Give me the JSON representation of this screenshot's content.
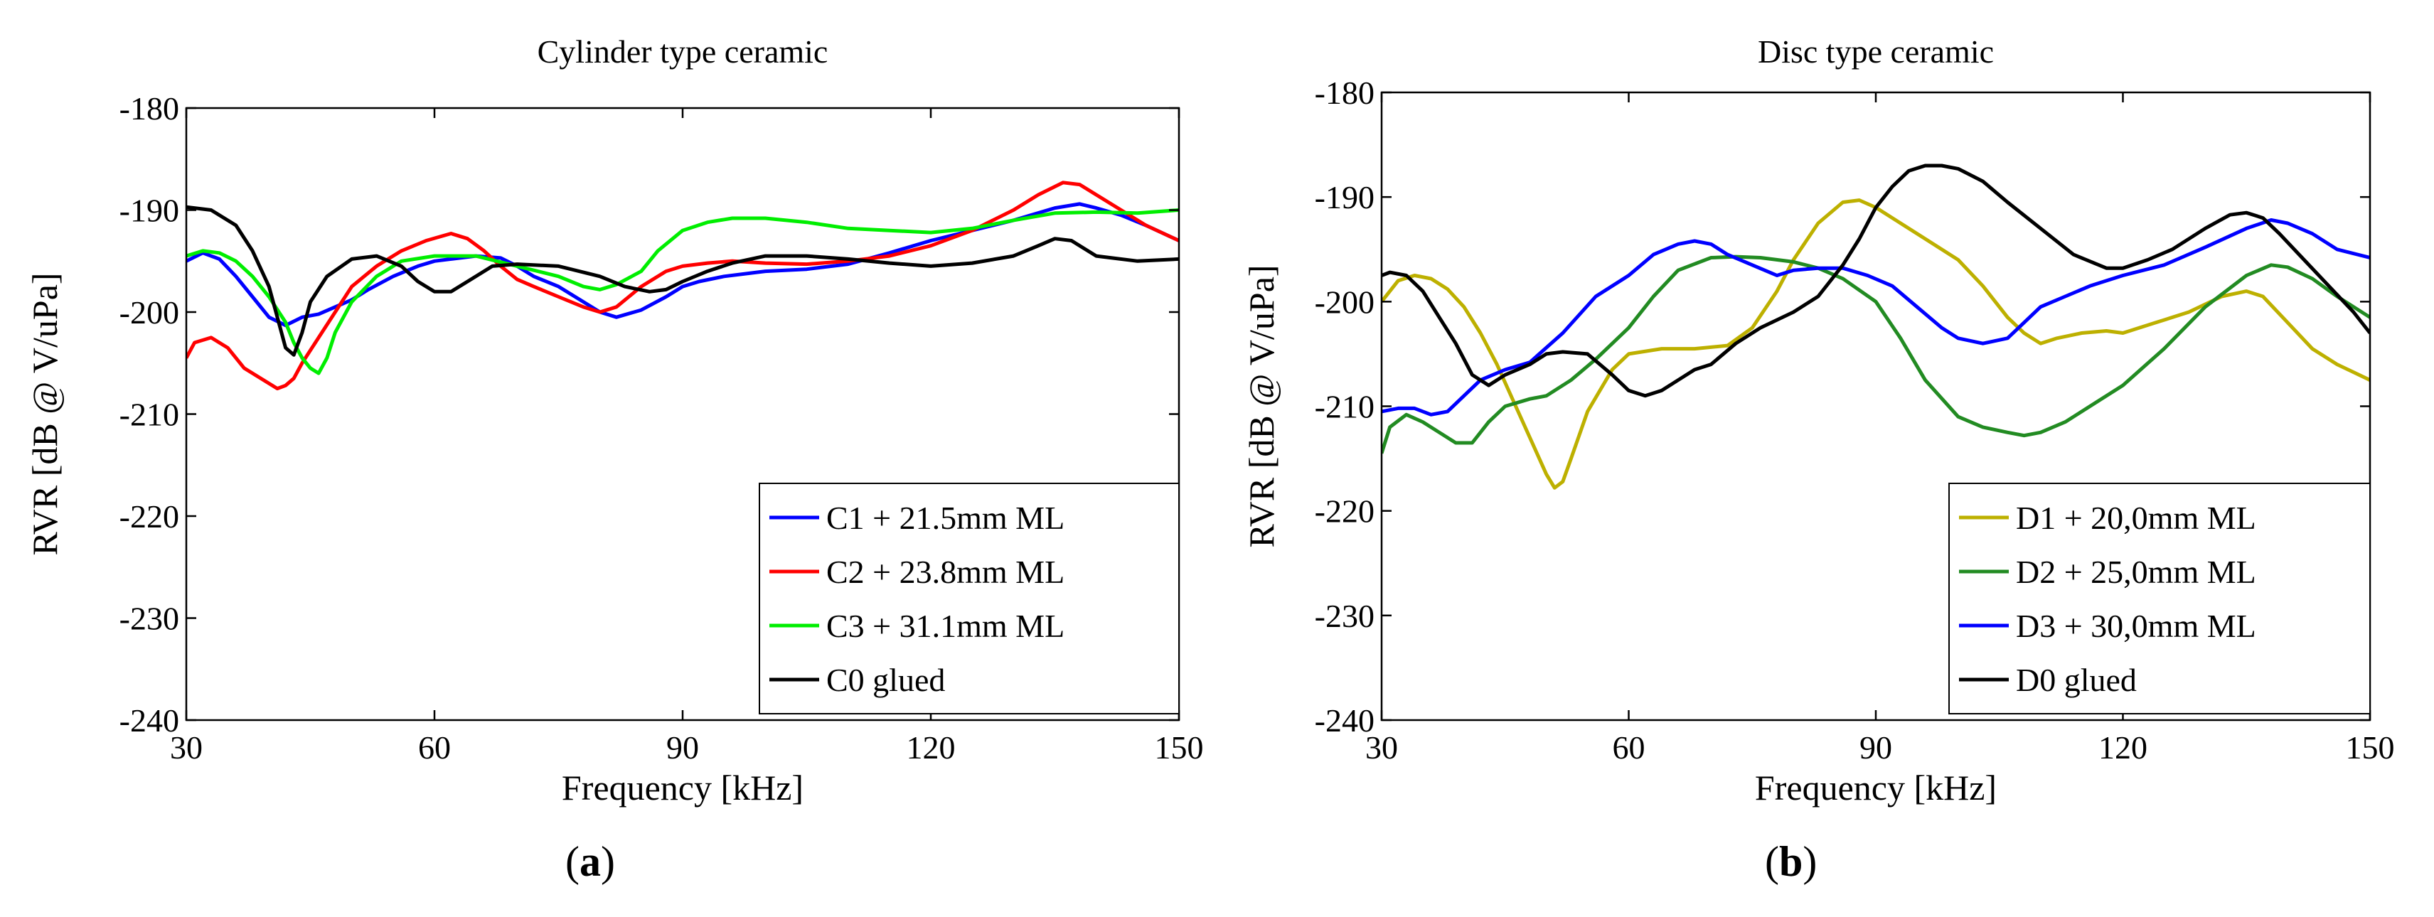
{
  "chart_data": [
    {
      "type": "line",
      "title": "Cylinder type ceramic",
      "xlabel": "Frequency [kHz]",
      "ylabel": "RVR [dB @ V/uPa]",
      "xlim": [
        30,
        150
      ],
      "ylim": [
        -240,
        -180
      ],
      "xticks": [
        30,
        60,
        90,
        120,
        150
      ],
      "yticks": [
        -240,
        -230,
        -220,
        -210,
        -200,
        -190,
        -180
      ],
      "grid": false,
      "legend_position": "bottom-right",
      "subfigure_label": {
        "open": "(",
        "letter": "a",
        "close": ")"
      },
      "series": [
        {
          "name": "C1 + 21.5mm ML",
          "color": "#0000ff",
          "x": [
            30,
            32,
            34,
            36,
            38,
            40,
            42,
            44,
            46,
            48,
            50,
            52,
            55,
            58,
            60,
            62,
            65,
            68,
            70,
            72,
            75,
            78,
            80,
            82,
            85,
            88,
            90,
            92,
            95,
            100,
            105,
            110,
            115,
            120,
            125,
            130,
            135,
            138,
            140,
            143,
            146,
            150
          ],
          "y": [
            -195,
            -194.2,
            -194.8,
            -196.5,
            -198.5,
            -200.5,
            -201.3,
            -200.5,
            -200.2,
            -199.5,
            -198.8,
            -197.8,
            -196.5,
            -195.5,
            -195,
            -194.8,
            -194.5,
            -194.7,
            -195.5,
            -196.5,
            -197.5,
            -199,
            -200,
            -200.5,
            -199.8,
            -198.5,
            -197.5,
            -197,
            -196.5,
            -196,
            -195.8,
            -195.3,
            -194.2,
            -193,
            -192,
            -191,
            -189.8,
            -189.4,
            -189.8,
            -190.5,
            -191.5,
            -193
          ]
        },
        {
          "name": "C2 + 23.8mm ML",
          "color": "#ff0000",
          "x": [
            30,
            31,
            33,
            35,
            37,
            39,
            41,
            42,
            43,
            44,
            46,
            48,
            50,
            53,
            56,
            59,
            62,
            64,
            66,
            68,
            70,
            72,
            75,
            78,
            80,
            82,
            85,
            88,
            90,
            93,
            96,
            100,
            105,
            110,
            115,
            120,
            125,
            130,
            133,
            136,
            138,
            140,
            143,
            146,
            150
          ],
          "y": [
            -204.5,
            -203,
            -202.5,
            -203.5,
            -205.5,
            -206.5,
            -207.5,
            -207.2,
            -206.5,
            -205,
            -202.5,
            -200,
            -197.5,
            -195.5,
            -194,
            -193,
            -192.3,
            -192.8,
            -194,
            -195.5,
            -196.8,
            -197.5,
            -198.5,
            -199.5,
            -200,
            -199.5,
            -197.5,
            -196,
            -195.5,
            -195.2,
            -195,
            -195.2,
            -195.3,
            -195,
            -194.5,
            -193.5,
            -192,
            -190,
            -188.5,
            -187.3,
            -187.5,
            -188.5,
            -190,
            -191.5,
            -193
          ]
        },
        {
          "name": "C3 + 31.1mm ML",
          "color": "#00ee00",
          "x": [
            30,
            32,
            34,
            36,
            38,
            40,
            42,
            43,
            44,
            45,
            46,
            47,
            48,
            50,
            53,
            56,
            60,
            65,
            70,
            75,
            78,
            80,
            82,
            85,
            87,
            90,
            93,
            96,
            100,
            105,
            110,
            115,
            120,
            125,
            130,
            135,
            140,
            145,
            150
          ],
          "y": [
            -194.5,
            -194,
            -194.2,
            -195,
            -196.5,
            -198.5,
            -201,
            -203,
            -204.5,
            -205.5,
            -206,
            -204.5,
            -202,
            -199,
            -196.5,
            -195,
            -194.5,
            -194.5,
            -195.5,
            -196.5,
            -197.5,
            -197.8,
            -197.3,
            -196,
            -194,
            -192,
            -191.2,
            -190.8,
            -190.8,
            -191.2,
            -191.8,
            -192,
            -192.2,
            -191.8,
            -191,
            -190.3,
            -190.2,
            -190.3,
            -190
          ]
        },
        {
          "name": "C0 glued",
          "color": "#000000",
          "x": [
            30,
            33,
            36,
            38,
            40,
            41,
            42,
            43,
            44,
            45,
            47,
            50,
            53,
            56,
            58,
            60,
            62,
            64,
            67,
            70,
            75,
            80,
            83,
            86,
            88,
            90,
            93,
            96,
            100,
            105,
            110,
            115,
            120,
            125,
            130,
            133,
            135,
            137,
            140,
            145,
            150
          ],
          "y": [
            -189.7,
            -190,
            -191.5,
            -194,
            -197.5,
            -200.5,
            -203.5,
            -204.2,
            -202,
            -199,
            -196.5,
            -194.8,
            -194.5,
            -195.5,
            -197,
            -198,
            -198,
            -197,
            -195.5,
            -195.3,
            -195.5,
            -196.5,
            -197.5,
            -198,
            -197.8,
            -197,
            -196,
            -195.2,
            -194.5,
            -194.5,
            -194.8,
            -195.2,
            -195.5,
            -195.2,
            -194.5,
            -193.5,
            -192.8,
            -193,
            -194.5,
            -195,
            -194.8
          ]
        }
      ]
    },
    {
      "type": "line",
      "title": "Disc type ceramic",
      "xlabel": "Frequency [kHz]",
      "ylabel": "RVR [dB @ V/uPa]",
      "xlim": [
        30,
        150
      ],
      "ylim": [
        -240,
        -180
      ],
      "xticks": [
        30,
        60,
        90,
        120,
        150
      ],
      "yticks": [
        -240,
        -230,
        -220,
        -210,
        -200,
        -190,
        -180
      ],
      "grid": false,
      "legend_position": "bottom-right",
      "subfigure_label": {
        "open": "(",
        "letter": "b",
        "close": ")"
      },
      "series": [
        {
          "name": "D1 + 20,0mm ML",
          "color": "#bdb000",
          "x": [
            30,
            32,
            34,
            36,
            38,
            40,
            42,
            44,
            46,
            48,
            50,
            51,
            52,
            53,
            55,
            58,
            60,
            64,
            68,
            72,
            75,
            78,
            80,
            83,
            86,
            88,
            90,
            93,
            96,
            100,
            103,
            106,
            108,
            110,
            112,
            115,
            118,
            120,
            124,
            128,
            132,
            135,
            137,
            140,
            143,
            146,
            150
          ],
          "y": [
            -200,
            -198,
            -197.5,
            -197.8,
            -198.8,
            -200.5,
            -203,
            -206,
            -209.5,
            -213,
            -216.5,
            -217.8,
            -217.2,
            -215,
            -210.5,
            -206.5,
            -205,
            -204.5,
            -204.5,
            -204.2,
            -202.5,
            -199,
            -196,
            -192.5,
            -190.5,
            -190.3,
            -191,
            -192.5,
            -194,
            -196,
            -198.5,
            -201.5,
            -203,
            -204,
            -203.5,
            -203,
            -202.8,
            -203,
            -202,
            -201,
            -199.5,
            -199,
            -199.5,
            -202,
            -204.5,
            -206,
            -207.5
          ]
        },
        {
          "name": "D2 + 25,0mm ML",
          "color": "#228b22",
          "x": [
            30,
            31,
            33,
            35,
            37,
            39,
            41,
            43,
            45,
            48,
            50,
            53,
            56,
            60,
            63,
            66,
            70,
            73,
            76,
            80,
            83,
            86,
            90,
            93,
            96,
            100,
            103,
            106,
            108,
            110,
            113,
            116,
            120,
            125,
            130,
            135,
            138,
            140,
            143,
            146,
            150
          ],
          "y": [
            -214.5,
            -212,
            -210.8,
            -211.5,
            -212.5,
            -213.5,
            -213.5,
            -211.5,
            -210,
            -209.3,
            -209,
            -207.5,
            -205.5,
            -202.5,
            -199.5,
            -197,
            -195.8,
            -195.7,
            -195.8,
            -196.2,
            -196.8,
            -197.8,
            -200,
            -203.5,
            -207.5,
            -211,
            -212,
            -212.5,
            -212.8,
            -212.5,
            -211.5,
            -210,
            -208,
            -204.5,
            -200.5,
            -197.5,
            -196.5,
            -196.7,
            -197.8,
            -199.5,
            -201.5
          ]
        },
        {
          "name": "D3 + 30,0mm ML",
          "color": "#0000ff",
          "x": [
            30,
            32,
            34,
            36,
            38,
            40,
            42,
            45,
            48,
            52,
            56,
            60,
            63,
            66,
            68,
            70,
            72,
            75,
            78,
            80,
            83,
            86,
            89,
            92,
            95,
            98,
            100,
            103,
            106,
            108,
            110,
            113,
            116,
            120,
            125,
            130,
            135,
            138,
            140,
            143,
            146,
            150
          ],
          "y": [
            -210.5,
            -210.2,
            -210.2,
            -210.8,
            -210.5,
            -209,
            -207.5,
            -206.5,
            -205.8,
            -203,
            -199.5,
            -197.5,
            -195.5,
            -194.5,
            -194.2,
            -194.5,
            -195.5,
            -196.5,
            -197.5,
            -197,
            -196.8,
            -196.8,
            -197.5,
            -198.5,
            -200.5,
            -202.5,
            -203.5,
            -204,
            -203.5,
            -202,
            -200.5,
            -199.5,
            -198.5,
            -197.5,
            -196.5,
            -194.8,
            -193,
            -192.2,
            -192.5,
            -193.5,
            -195,
            -195.8
          ]
        },
        {
          "name": "D0 glued",
          "color": "#000000",
          "x": [
            30,
            31,
            33,
            35,
            37,
            39,
            41,
            43,
            45,
            48,
            50,
            52,
            55,
            58,
            60,
            62,
            64,
            66,
            68,
            70,
            73,
            76,
            80,
            83,
            86,
            88,
            90,
            92,
            94,
            96,
            98,
            100,
            103,
            106,
            110,
            114,
            118,
            120,
            123,
            126,
            130,
            133,
            135,
            137,
            139,
            142,
            145,
            148,
            150
          ],
          "y": [
            -197.5,
            -197.2,
            -197.5,
            -199,
            -201.5,
            -204,
            -207,
            -208,
            -207,
            -206,
            -205,
            -204.8,
            -205,
            -207,
            -208.5,
            -209,
            -208.5,
            -207.5,
            -206.5,
            -206,
            -204,
            -202.5,
            -201,
            -199.5,
            -196.5,
            -194,
            -191,
            -189,
            -187.5,
            -187,
            -187,
            -187.3,
            -188.5,
            -190.5,
            -193,
            -195.5,
            -196.8,
            -196.8,
            -196,
            -195,
            -193,
            -191.7,
            -191.5,
            -192,
            -193.5,
            -196,
            -198.5,
            -201,
            -203
          ]
        }
      ]
    }
  ]
}
